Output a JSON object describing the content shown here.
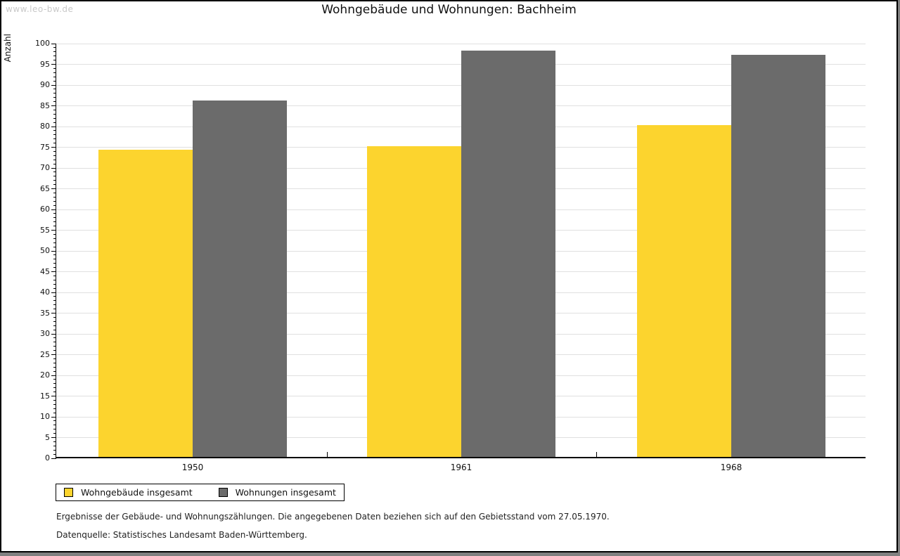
{
  "watermark": "www.leo-bw.de",
  "chart_data": {
    "type": "bar",
    "title": "Wohngebäude und Wohnungen: Bachheim",
    "xlabel": "",
    "ylabel": "Anzahl",
    "categories": [
      "1950",
      "1961",
      "1968"
    ],
    "series": [
      {
        "name": "Wohngebäude insgesamt",
        "color": "#fcd42e",
        "values": [
          74,
          75,
          80
        ]
      },
      {
        "name": "Wohnungen insgesamt",
        "color": "#6b6b6b",
        "values": [
          86,
          98,
          97
        ]
      }
    ],
    "ylim": [
      0,
      100
    ],
    "ytick_step": 5,
    "yminor_step": 1,
    "grid": true,
    "legend_position": "bottom-left"
  },
  "footer": {
    "line1": "Ergebnisse der Gebäude- und Wohnungszählungen. Die angegebenen Daten beziehen sich auf den Gebietsstand vom 27.05.1970.",
    "line2": "Datenquelle: Statistisches Landesamt Baden-Württemberg."
  },
  "colors": {
    "bar_yellow": "#fcd42e",
    "bar_gray": "#6b6b6b",
    "gridline": "#e0e0e0",
    "watermark": "#c9c9c9",
    "frame": "#000000",
    "outer_background": "#808080"
  }
}
